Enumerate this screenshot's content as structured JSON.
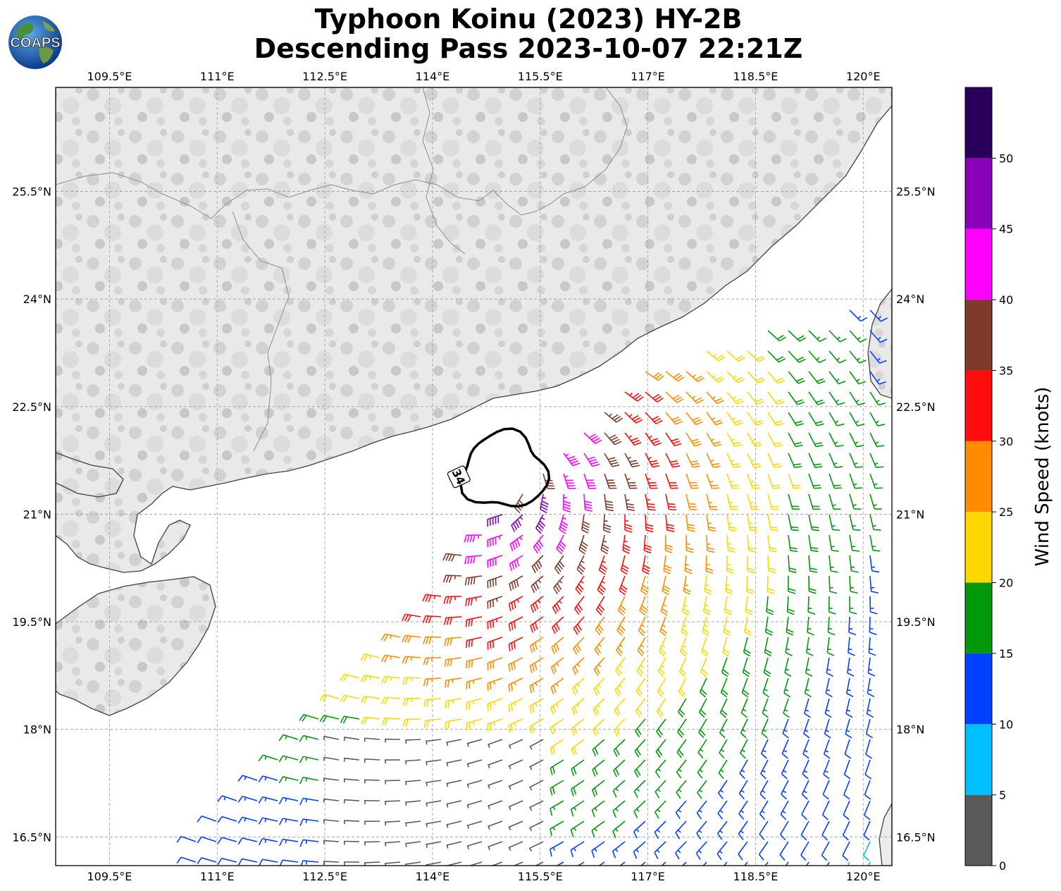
{
  "header": {
    "title_line1": "Typhoon Koinu (2023) HY-2B",
    "title_line2": "Descending Pass 2023-10-07 22:21Z",
    "logo_text": "COAPS"
  },
  "map": {
    "lon_range": [
      108.75,
      120.4
    ],
    "lat_range": [
      16.1,
      26.95
    ],
    "lon_ticks": [
      {
        "value": 109.5,
        "label": "109.5°E"
      },
      {
        "value": 111.0,
        "label": "111°E"
      },
      {
        "value": 112.5,
        "label": "112.5°E"
      },
      {
        "value": 114.0,
        "label": "114°E"
      },
      {
        "value": 115.5,
        "label": "115.5°E"
      },
      {
        "value": 117.0,
        "label": "117°E"
      },
      {
        "value": 118.5,
        "label": "118.5°E"
      },
      {
        "value": 120.0,
        "label": "120°E"
      }
    ],
    "lat_ticks": [
      {
        "value": 25.5,
        "label": "25.5°N"
      },
      {
        "value": 24.0,
        "label": "24°N"
      },
      {
        "value": 22.5,
        "label": "22.5°N"
      },
      {
        "value": 21.0,
        "label": "21°N"
      },
      {
        "value": 19.5,
        "label": "19.5°N"
      },
      {
        "value": 18.0,
        "label": "18°N"
      },
      {
        "value": 16.5,
        "label": "16.5°N"
      }
    ],
    "grid": true,
    "storm_center": {
      "lon": 115.0,
      "lat": 21.6
    },
    "wind_radius_34kt": {
      "label": "34",
      "radius_deg": 0.55
    },
    "coastline_colors": {
      "coast": "#404040",
      "border": "#8c8c8c",
      "land": "#e6e6e6",
      "ocean": "#ffffff"
    }
  },
  "colorbar": {
    "label": "Wind Speed (knots)",
    "ticks": [
      "0",
      "5",
      "10",
      "15",
      "20",
      "25",
      "30",
      "35",
      "40",
      "45",
      "50"
    ],
    "max_value": 55,
    "bins": [
      {
        "from": 0,
        "to": 5,
        "color": "#595959"
      },
      {
        "from": 5,
        "to": 10,
        "color": "#00bfff"
      },
      {
        "from": 10,
        "to": 15,
        "color": "#0040ff"
      },
      {
        "from": 15,
        "to": 20,
        "color": "#00990a"
      },
      {
        "from": 20,
        "to": 25,
        "color": "#ffd700"
      },
      {
        "from": 25,
        "to": 30,
        "color": "#ff8c00"
      },
      {
        "from": 30,
        "to": 35,
        "color": "#ff0d0d"
      },
      {
        "from": 35,
        "to": 40,
        "color": "#7f3a2a"
      },
      {
        "from": 40,
        "to": 45,
        "color": "#ff00ff"
      },
      {
        "from": 45,
        "to": 50,
        "color": "#8a00b8"
      },
      {
        "from": 50,
        "to": 55,
        "color": "#2a005c"
      }
    ]
  }
}
